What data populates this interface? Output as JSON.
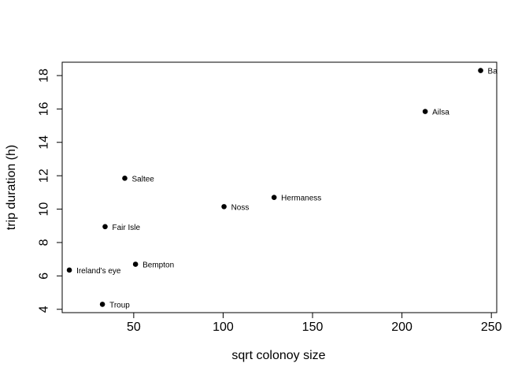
{
  "chart_data": {
    "type": "scatter",
    "title": "",
    "xlabel": "sqrt colonoy size",
    "ylabel": "trip duration (h)",
    "xlim": [
      10,
      253
    ],
    "ylim": [
      3.8,
      18.8
    ],
    "xticks": [
      50,
      100,
      150,
      200,
      250
    ],
    "yticks": [
      4,
      6,
      8,
      10,
      12,
      14,
      16,
      18
    ],
    "grid": false,
    "points": [
      {
        "label": "Ba",
        "x": 244,
        "y": 18.3
      },
      {
        "label": "Ailsa",
        "x": 213,
        "y": 15.85
      },
      {
        "label": "Saltee",
        "x": 45,
        "y": 11.85
      },
      {
        "label": "Hermaness",
        "x": 128.5,
        "y": 10.7
      },
      {
        "label": "Noss",
        "x": 100.5,
        "y": 10.15
      },
      {
        "label": "Fair Isle",
        "x": 34,
        "y": 8.95
      },
      {
        "label": "Bempton",
        "x": 51,
        "y": 6.7
      },
      {
        "label": "Ireland's eye",
        "x": 14,
        "y": 6.35
      },
      {
        "label": "Troup",
        "x": 32.5,
        "y": 4.3
      }
    ]
  }
}
